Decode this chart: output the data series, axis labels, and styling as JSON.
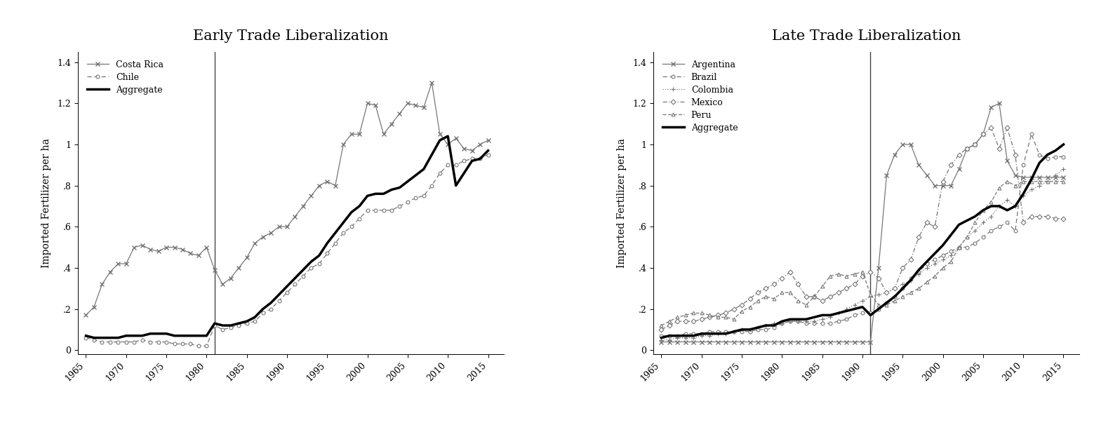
{
  "early": {
    "title": "Early Trade Liberalization",
    "vline": 1981,
    "years": [
      1965,
      1966,
      1967,
      1968,
      1969,
      1970,
      1971,
      1972,
      1973,
      1974,
      1975,
      1976,
      1977,
      1978,
      1979,
      1980,
      1981,
      1982,
      1983,
      1984,
      1985,
      1986,
      1987,
      1988,
      1989,
      1990,
      1991,
      1992,
      1993,
      1994,
      1995,
      1996,
      1997,
      1998,
      1999,
      2000,
      2001,
      2002,
      2003,
      2004,
      2005,
      2006,
      2007,
      2008,
      2009,
      2010,
      2011,
      2012,
      2013,
      2014,
      2015
    ],
    "costa_rica": [
      0.17,
      0.21,
      0.32,
      0.38,
      0.42,
      0.42,
      0.5,
      0.51,
      0.49,
      0.48,
      0.5,
      0.5,
      0.49,
      0.47,
      0.46,
      0.5,
      0.39,
      0.32,
      0.35,
      0.4,
      0.45,
      0.52,
      0.55,
      0.57,
      0.6,
      0.6,
      0.65,
      0.7,
      0.75,
      0.8,
      0.82,
      0.8,
      1.0,
      1.05,
      1.05,
      1.2,
      1.19,
      1.05,
      1.1,
      1.15,
      1.2,
      1.19,
      1.18,
      1.3,
      1.05,
      1.0,
      1.03,
      0.98,
      0.97,
      1.0,
      1.02
    ],
    "chile": [
      0.06,
      0.05,
      0.04,
      0.04,
      0.04,
      0.04,
      0.04,
      0.05,
      0.04,
      0.04,
      0.04,
      0.03,
      0.03,
      0.03,
      0.02,
      0.02,
      0.12,
      0.1,
      0.11,
      0.12,
      0.13,
      0.14,
      0.18,
      0.2,
      0.24,
      0.28,
      0.32,
      0.36,
      0.4,
      0.42,
      0.47,
      0.52,
      0.57,
      0.6,
      0.64,
      0.68,
      0.68,
      0.68,
      0.68,
      0.7,
      0.72,
      0.74,
      0.75,
      0.8,
      0.86,
      0.9,
      0.9,
      0.92,
      0.93,
      0.93,
      0.95
    ],
    "aggregate": [
      0.07,
      0.06,
      0.06,
      0.06,
      0.06,
      0.07,
      0.07,
      0.07,
      0.08,
      0.08,
      0.08,
      0.07,
      0.07,
      0.07,
      0.07,
      0.07,
      0.13,
      0.12,
      0.12,
      0.13,
      0.14,
      0.16,
      0.2,
      0.23,
      0.27,
      0.31,
      0.35,
      0.39,
      0.43,
      0.46,
      0.52,
      0.57,
      0.62,
      0.67,
      0.7,
      0.75,
      0.76,
      0.76,
      0.78,
      0.79,
      0.82,
      0.85,
      0.88,
      0.95,
      1.02,
      1.04,
      0.8,
      0.86,
      0.92,
      0.93,
      0.97
    ]
  },
  "late": {
    "title": "Late Trade Liberalization",
    "vline": 1991,
    "years": [
      1965,
      1966,
      1967,
      1968,
      1969,
      1970,
      1971,
      1972,
      1973,
      1974,
      1975,
      1976,
      1977,
      1978,
      1979,
      1980,
      1981,
      1982,
      1983,
      1984,
      1985,
      1986,
      1987,
      1988,
      1989,
      1990,
      1991,
      1992,
      1993,
      1994,
      1995,
      1996,
      1997,
      1998,
      1999,
      2000,
      2001,
      2002,
      2003,
      2004,
      2005,
      2006,
      2007,
      2008,
      2009,
      2010,
      2011,
      2012,
      2013,
      2014,
      2015
    ],
    "argentina": [
      0.04,
      0.04,
      0.04,
      0.04,
      0.04,
      0.04,
      0.04,
      0.04,
      0.04,
      0.04,
      0.04,
      0.04,
      0.04,
      0.04,
      0.04,
      0.04,
      0.04,
      0.04,
      0.04,
      0.04,
      0.04,
      0.04,
      0.04,
      0.04,
      0.04,
      0.04,
      0.04,
      0.4,
      0.85,
      0.95,
      1.0,
      1.0,
      0.9,
      0.85,
      0.8,
      0.8,
      0.8,
      0.88,
      0.98,
      1.0,
      1.05,
      1.18,
      1.2,
      0.92,
      0.85,
      0.84,
      0.84,
      0.84,
      0.84,
      0.84,
      0.84
    ],
    "brazil": [
      0.07,
      0.07,
      0.07,
      0.08,
      0.08,
      0.08,
      0.09,
      0.09,
      0.09,
      0.09,
      0.09,
      0.09,
      0.1,
      0.1,
      0.11,
      0.13,
      0.14,
      0.14,
      0.13,
      0.13,
      0.13,
      0.13,
      0.14,
      0.15,
      0.17,
      0.18,
      0.18,
      0.2,
      0.23,
      0.26,
      0.3,
      0.35,
      0.38,
      0.42,
      0.44,
      0.46,
      0.48,
      0.5,
      0.5,
      0.52,
      0.55,
      0.58,
      0.6,
      0.62,
      0.58,
      0.9,
      1.05,
      0.95,
      0.93,
      0.94,
      0.94
    ],
    "colombia": [
      0.05,
      0.05,
      0.06,
      0.06,
      0.06,
      0.07,
      0.07,
      0.08,
      0.08,
      0.09,
      0.1,
      0.1,
      0.11,
      0.12,
      0.13,
      0.13,
      0.14,
      0.14,
      0.14,
      0.14,
      0.15,
      0.16,
      0.18,
      0.2,
      0.22,
      0.24,
      0.26,
      0.27,
      0.28,
      0.3,
      0.32,
      0.34,
      0.37,
      0.4,
      0.42,
      0.44,
      0.46,
      0.5,
      0.55,
      0.58,
      0.62,
      0.65,
      0.7,
      0.73,
      0.7,
      0.75,
      0.78,
      0.8,
      0.82,
      0.85,
      0.88
    ],
    "mexico": [
      0.1,
      0.12,
      0.14,
      0.14,
      0.14,
      0.15,
      0.16,
      0.17,
      0.18,
      0.2,
      0.22,
      0.25,
      0.28,
      0.3,
      0.32,
      0.35,
      0.38,
      0.32,
      0.26,
      0.26,
      0.24,
      0.26,
      0.28,
      0.3,
      0.32,
      0.36,
      0.38,
      0.35,
      0.28,
      0.3,
      0.4,
      0.44,
      0.55,
      0.62,
      0.6,
      0.82,
      0.9,
      0.95,
      0.98,
      1.0,
      1.05,
      1.08,
      0.98,
      1.08,
      0.95,
      0.62,
      0.65,
      0.65,
      0.65,
      0.64,
      0.64
    ],
    "peru": [
      0.12,
      0.14,
      0.16,
      0.17,
      0.18,
      0.18,
      0.17,
      0.16,
      0.16,
      0.15,
      0.19,
      0.21,
      0.24,
      0.26,
      0.25,
      0.28,
      0.28,
      0.24,
      0.22,
      0.26,
      0.31,
      0.36,
      0.37,
      0.36,
      0.37,
      0.38,
      0.27,
      0.22,
      0.22,
      0.24,
      0.26,
      0.28,
      0.3,
      0.33,
      0.36,
      0.4,
      0.43,
      0.5,
      0.55,
      0.62,
      0.68,
      0.72,
      0.79,
      0.82,
      0.8,
      0.82,
      0.82,
      0.82,
      0.82,
      0.82,
      0.82
    ],
    "aggregate": [
      0.06,
      0.07,
      0.07,
      0.07,
      0.07,
      0.08,
      0.08,
      0.08,
      0.08,
      0.09,
      0.1,
      0.1,
      0.11,
      0.12,
      0.12,
      0.14,
      0.15,
      0.15,
      0.15,
      0.16,
      0.17,
      0.17,
      0.18,
      0.19,
      0.2,
      0.21,
      0.17,
      0.2,
      0.23,
      0.26,
      0.3,
      0.34,
      0.39,
      0.43,
      0.47,
      0.51,
      0.56,
      0.61,
      0.63,
      0.65,
      0.68,
      0.7,
      0.7,
      0.68,
      0.7,
      0.76,
      0.83,
      0.91,
      0.95,
      0.97,
      1.0
    ]
  },
  "ylabel": "Imported Fertilizer per ha",
  "ylim": [
    -0.02,
    1.45
  ],
  "yticks": [
    0,
    0.2,
    0.4,
    0.6,
    0.8,
    1.0,
    1.2,
    1.4
  ],
  "ytick_labels": [
    "0",
    ".2",
    ".4",
    ".6",
    ".8",
    "1",
    "1.2",
    "1.4"
  ],
  "xlim": [
    1964,
    2017
  ],
  "xticks": [
    1965,
    1970,
    1975,
    1980,
    1985,
    1990,
    1995,
    2000,
    2005,
    2010,
    2015
  ]
}
